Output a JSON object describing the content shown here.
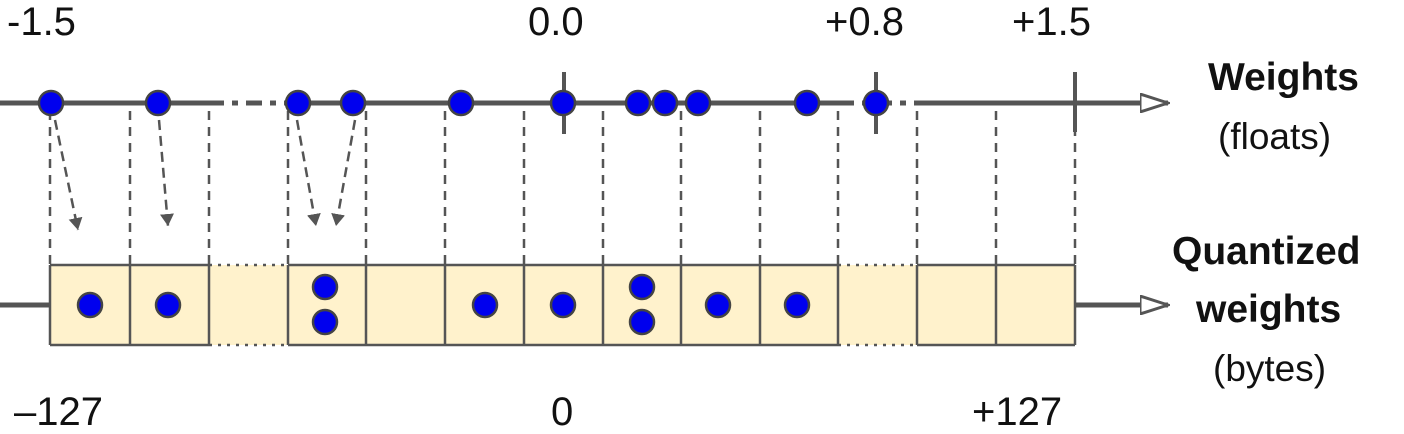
{
  "top_axis": {
    "tick_labels": [
      "-1.5",
      "0.0",
      "+0.8",
      "+1.5"
    ],
    "title": "Weights",
    "subtitle": "(floats)"
  },
  "bottom_axis": {
    "tick_labels": [
      "–127",
      "0",
      "+127"
    ],
    "title_line1": "Quantized",
    "title_line2": "weights",
    "subtitle": "(bytes)"
  },
  "colors": {
    "line": "#555555",
    "dashed": "#555555",
    "cell_fill": "#fff2cc",
    "cell_border": "#555555",
    "dot_fill": "#0000ee",
    "dot_stroke": "#444444"
  },
  "icons": [
    "arrow-right-icon",
    "dashed-arrow-icon",
    "dot-icon"
  ]
}
